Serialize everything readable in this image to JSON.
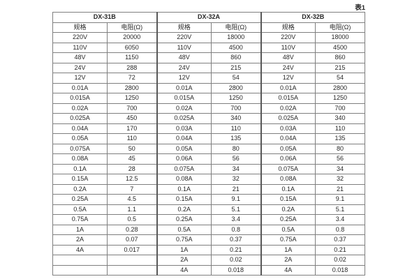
{
  "caption": "表1",
  "table": {
    "groups": [
      {
        "name": "DX-31B"
      },
      {
        "name": "DX-32A"
      },
      {
        "name": "DX-32B"
      }
    ],
    "col_headers": {
      "spec": "规格",
      "resistance": "电阻(Ω)"
    },
    "rows": [
      [
        "220V",
        "20000",
        "220V",
        "18000",
        "220V",
        "18000"
      ],
      [
        "110V",
        "6050",
        "110V",
        "4500",
        "110V",
        "4500"
      ],
      [
        "48V",
        "1150",
        "48V",
        "860",
        "48V",
        "860"
      ],
      [
        "24V",
        "288",
        "24V",
        "215",
        "24V",
        "215"
      ],
      [
        "12V",
        "72",
        "12V",
        "54",
        "12V",
        "54"
      ],
      [
        "0.01A",
        "2800",
        "0.01A",
        "2800",
        "0.01A",
        "2800"
      ],
      [
        "0.015A",
        "1250",
        "0.015A",
        "1250",
        "0.015A",
        "1250"
      ],
      [
        "0.02A",
        "700",
        "0.02A",
        "700",
        "0.02A",
        "700"
      ],
      [
        "0.025A",
        "450",
        "0.025A",
        "340",
        "0.025A",
        "340"
      ],
      [
        "0.04A",
        "170",
        "0.03A",
        "110",
        "0.03A",
        "110"
      ],
      [
        "0.05A",
        "110",
        "0.04A",
        "135",
        "0.04A",
        "135"
      ],
      [
        "0.075A",
        "50",
        "0.05A",
        "80",
        "0.05A",
        "80"
      ],
      [
        "0.08A",
        "45",
        "0.06A",
        "56",
        "0.06A",
        "56"
      ],
      [
        "0.1A",
        "28",
        "0.075A",
        "34",
        "0.075A",
        "34"
      ],
      [
        "0.15A",
        "12.5",
        "0.08A",
        "32",
        "0.08A",
        "32"
      ],
      [
        "0.2A",
        "7",
        "0.1A",
        "21",
        "0.1A",
        "21"
      ],
      [
        "0.25A",
        "4.5",
        "0.15A",
        "9.1",
        "0.15A",
        "9.1"
      ],
      [
        "0.5A",
        "1.1",
        "0.2A",
        "5.1",
        "0.2A",
        "5.1"
      ],
      [
        "0.75A",
        "0.5",
        "0.25A",
        "3.4",
        "0.25A",
        "3.4"
      ],
      [
        "1A",
        "0.28",
        "0.5A",
        "0.8",
        "0.5A",
        "0.8"
      ],
      [
        "2A",
        "0.07",
        "0.75A",
        "0.37",
        "0.75A",
        "0.37"
      ],
      [
        "4A",
        "0.017",
        "1A",
        "0.21",
        "1A",
        "0.21"
      ],
      [
        "",
        "",
        "2A",
        "0.02",
        "2A",
        "0.02"
      ],
      [
        "",
        "",
        "4A",
        "0.018",
        "4A",
        "0.018"
      ]
    ]
  }
}
